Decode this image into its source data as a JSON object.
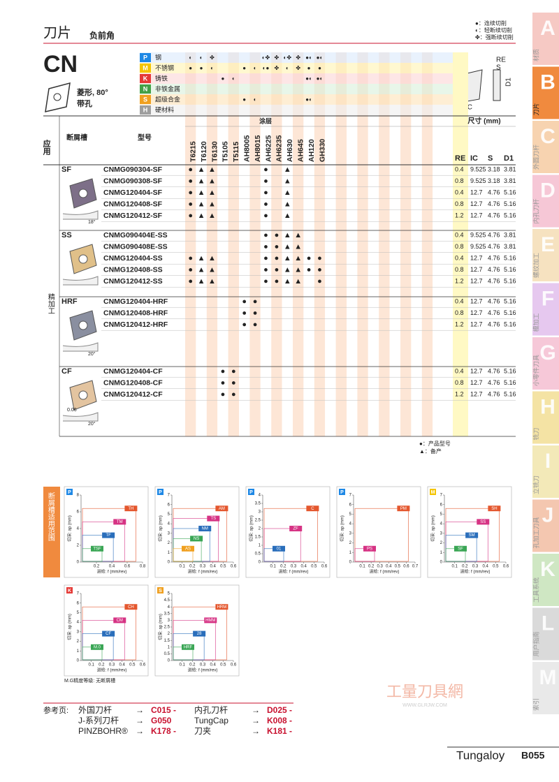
{
  "header": {
    "title": "刀片",
    "subtitle": "负前角",
    "legend": [
      "●：连续切削",
      "◐：轻断续切削",
      "✤：强断续切削"
    ]
  },
  "insert": {
    "code": "CN",
    "shape": "菱形, 80°",
    "hole": "带孔",
    "dims": [
      "RE",
      "S",
      "IC",
      "D1"
    ]
  },
  "materials": [
    {
      "code": "P",
      "name": "钢",
      "marks": [
        "◐",
        "◐",
        "✤",
        null,
        null,
        null,
        null,
        "◐✤",
        "✤",
        "◐✤",
        "✤",
        "●◐",
        "●◐"
      ]
    },
    {
      "code": "M",
      "name": "不锈钢",
      "marks": [
        "●",
        "●",
        "◐",
        null,
        null,
        "●",
        "◐",
        "◐●",
        "✤",
        "◐",
        "✤",
        "●",
        "●"
      ]
    },
    {
      "code": "K",
      "name": "铸铁",
      "marks": [
        null,
        null,
        null,
        "●",
        "◐",
        null,
        null,
        null,
        null,
        null,
        null,
        "●◐",
        "●◐"
      ]
    },
    {
      "code": "N",
      "name": "非铁金属",
      "marks": [
        null,
        null,
        null,
        null,
        null,
        null,
        null,
        null,
        null,
        null,
        null,
        null,
        null
      ]
    },
    {
      "code": "S",
      "name": "超级合金",
      "marks": [
        null,
        null,
        null,
        null,
        null,
        "●",
        "◐",
        null,
        null,
        null,
        null,
        "●◐",
        null
      ]
    },
    {
      "code": "H",
      "name": "硬材料",
      "marks": [
        null,
        null,
        null,
        null,
        null,
        null,
        null,
        null,
        null,
        null,
        null,
        null,
        null
      ]
    }
  ],
  "table": {
    "col_application": "应用",
    "col_chipbreaker": "断屑槽",
    "col_model": "型号",
    "col_coating": "涂层",
    "col_dims": "尺寸 (mm)",
    "dim_heads": [
      "RE",
      "IC",
      "S",
      "D1"
    ],
    "application": "精加工",
    "grades": [
      "T6215",
      "T6120",
      "T6130",
      "T5105",
      "T5115",
      "AH8005",
      "AH8015",
      "AH6225",
      "AH6235",
      "AH630",
      "AH645",
      "AH120",
      "GH330"
    ],
    "groups": [
      {
        "name": "SF",
        "angle": "18°",
        "rows": [
          {
            "model": "CNMG090304-SF",
            "marks": [
              "●",
              "▲",
              "▲",
              null,
              null,
              null,
              null,
              "●",
              null,
              "▲",
              null,
              null,
              null
            ],
            "dims": [
              "0.4",
              "9.525",
              "3.18",
              "3.81"
            ]
          },
          {
            "model": "CNMG090308-SF",
            "marks": [
              "●",
              "▲",
              "▲",
              null,
              null,
              null,
              null,
              "●",
              null,
              "▲",
              null,
              null,
              null
            ],
            "dims": [
              "0.8",
              "9.525",
              "3.18",
              "3.81"
            ]
          },
          {
            "model": "CNMG120404-SF",
            "marks": [
              "●",
              "▲",
              "▲",
              null,
              null,
              null,
              null,
              "●",
              null,
              "▲",
              null,
              null,
              null
            ],
            "dims": [
              "0.4",
              "12.7",
              "4.76",
              "5.16"
            ]
          },
          {
            "model": "CNMG120408-SF",
            "marks": [
              "●",
              "▲",
              "▲",
              null,
              null,
              null,
              null,
              "●",
              null,
              "▲",
              null,
              null,
              null
            ],
            "dims": [
              "0.8",
              "12.7",
              "4.76",
              "5.16"
            ]
          },
          {
            "model": "CNMG120412-SF",
            "marks": [
              "●",
              "▲",
              "▲",
              null,
              null,
              null,
              null,
              "●",
              null,
              "▲",
              null,
              null,
              null
            ],
            "dims": [
              "1.2",
              "12.7",
              "4.76",
              "5.16"
            ]
          }
        ]
      },
      {
        "name": "SS",
        "rows": [
          {
            "model": "CNMG090404E-SS",
            "marks": [
              null,
              null,
              null,
              null,
              null,
              null,
              null,
              "●",
              "●",
              "▲",
              "▲",
              null,
              null
            ],
            "dims": [
              "0.4",
              "9.525",
              "4.76",
              "3.81"
            ]
          },
          {
            "model": "CNMG090408E-SS",
            "marks": [
              null,
              null,
              null,
              null,
              null,
              null,
              null,
              "●",
              "●",
              "▲",
              "▲",
              null,
              null
            ],
            "dims": [
              "0.8",
              "9.525",
              "4.76",
              "3.81"
            ]
          },
          {
            "model": "CNMG120404-SS",
            "marks": [
              "●",
              "▲",
              "▲",
              null,
              null,
              null,
              null,
              "●",
              "●",
              "▲",
              "▲",
              "●",
              "●"
            ],
            "dims": [
              "0.4",
              "12.7",
              "4.76",
              "5.16"
            ]
          },
          {
            "model": "CNMG120408-SS",
            "marks": [
              "●",
              "▲",
              "▲",
              null,
              null,
              null,
              null,
              "●",
              "●",
              "▲",
              "▲",
              "●",
              "●"
            ],
            "dims": [
              "0.8",
              "12.7",
              "4.76",
              "5.16"
            ]
          },
          {
            "model": "CNMG120412-SS",
            "marks": [
              "●",
              "▲",
              "▲",
              null,
              null,
              null,
              null,
              "●",
              "●",
              "▲",
              "▲",
              null,
              "●"
            ],
            "dims": [
              "1.2",
              "12.7",
              "4.76",
              "5.16"
            ]
          }
        ]
      },
      {
        "name": "HRF",
        "angle": "20°",
        "rows": [
          {
            "model": "CNMG120404-HRF",
            "marks": [
              null,
              null,
              null,
              null,
              null,
              "●",
              "●",
              null,
              null,
              null,
              null,
              null,
              null
            ],
            "dims": [
              "0.4",
              "12.7",
              "4.76",
              "5.16"
            ]
          },
          {
            "model": "CNMG120408-HRF",
            "marks": [
              null,
              null,
              null,
              null,
              null,
              "●",
              "●",
              null,
              null,
              null,
              null,
              null,
              null
            ],
            "dims": [
              "0.8",
              "12.7",
              "4.76",
              "5.16"
            ]
          },
          {
            "model": "CNMG120412-HRF",
            "marks": [
              null,
              null,
              null,
              null,
              null,
              "●",
              "●",
              null,
              null,
              null,
              null,
              null,
              null
            ],
            "dims": [
              "1.2",
              "12.7",
              "4.76",
              "5.16"
            ]
          }
        ]
      },
      {
        "name": "CF",
        "angle": "20°",
        "land": "0.06",
        "rows": [
          {
            "model": "CNMG120404-CF",
            "marks": [
              null,
              null,
              null,
              "●",
              "●",
              null,
              null,
              null,
              null,
              null,
              null,
              null,
              null
            ],
            "dims": [
              "0.4",
              "12.7",
              "4.76",
              "5.16"
            ]
          },
          {
            "model": "CNMG120408-CF",
            "marks": [
              null,
              null,
              null,
              "●",
              "●",
              null,
              null,
              null,
              null,
              null,
              null,
              null,
              null
            ],
            "dims": [
              "0.8",
              "12.7",
              "4.76",
              "5.16"
            ]
          },
          {
            "model": "CNMG120412-CF",
            "marks": [
              null,
              null,
              null,
              "●",
              "●",
              null,
              null,
              null,
              null,
              null,
              null,
              null,
              null
            ],
            "dims": [
              "1.2",
              "12.7",
              "4.76",
              "5.16"
            ]
          }
        ]
      }
    ],
    "notes": [
      "●：产品型号",
      "▲：备产"
    ]
  },
  "ranges": {
    "title": "断屑槽适用范围",
    "xlabel": "进给: f (mm/rev)",
    "ylabel": "切深: ap (mm)",
    "note": "M.G精度等级: 无断屑槽",
    "charts": [
      {
        "material": "P",
        "xticks": [
          0.2,
          0.4,
          0.6,
          0.8
        ],
        "yticks": [
          0,
          2,
          4,
          6,
          8
        ],
        "regions": [
          "TH",
          "TM",
          "TF",
          "TSF"
        ]
      },
      {
        "material": "P",
        "xticks": [
          0.1,
          0.2,
          0.3,
          0.4,
          0.5,
          0.6
        ],
        "yticks": [
          0,
          1,
          2,
          3,
          4,
          5,
          6,
          7
        ],
        "regions": [
          "AM",
          "TS",
          "NM",
          "NS",
          "AS"
        ]
      },
      {
        "material": "P",
        "xticks": [
          0.1,
          0.2,
          0.3,
          0.4,
          0.5,
          0.6
        ],
        "yticks": [
          0,
          0.5,
          1,
          1.5,
          2,
          2.5,
          3,
          3.5,
          4
        ],
        "regions": [
          "C",
          "ZF",
          "01"
        ]
      },
      {
        "material": "P",
        "xticks": [
          0.1,
          0.2,
          0.3,
          0.4,
          0.5,
          0.6,
          0.7
        ],
        "yticks": [
          0,
          1,
          2,
          3,
          4,
          5,
          6,
          7
        ],
        "regions": [
          "PM",
          "PS"
        ]
      },
      {
        "material": "M",
        "xticks": [
          0.1,
          0.2,
          0.3,
          0.4,
          0.5,
          0.6
        ],
        "yticks": [
          0,
          1,
          2,
          3,
          4,
          5,
          6,
          7
        ],
        "regions": [
          "SH",
          "SS",
          "SM",
          "SF"
        ]
      },
      {
        "material": "K",
        "xticks": [
          0.1,
          0.2,
          0.3,
          0.4,
          0.5,
          0.6
        ],
        "yticks": [
          0,
          1,
          2,
          3,
          4,
          5,
          6,
          7
        ],
        "regions": [
          "CH",
          "CM",
          "CF",
          "M.0"
        ]
      },
      {
        "material": "S",
        "xticks": [
          0.1,
          0.2,
          0.3,
          0.4,
          0.5,
          0.6
        ],
        "yticks": [
          0,
          0.5,
          1,
          1.5,
          2,
          2.5,
          3,
          3.5,
          4,
          4.5,
          5
        ],
        "regions": [
          "HRM",
          "HMM",
          "28",
          "HRF"
        ]
      }
    ]
  },
  "references": {
    "label": "参考页:",
    "items": [
      [
        "外国刀杆",
        "C015 -"
      ],
      [
        "内孔刀杆",
        "D025 -"
      ],
      [
        "J-系列刀杆",
        "G050"
      ],
      [
        "TungCap",
        "K008 -"
      ],
      [
        "PINZBOHR®",
        "K178 -"
      ],
      [
        "刀夹",
        "K181 -"
      ]
    ]
  },
  "tabs": [
    [
      "A",
      "材质"
    ],
    [
      "B",
      "刀片"
    ],
    [
      "C",
      "外圆刀杆"
    ],
    [
      "D",
      "内孔刀杆"
    ],
    [
      "E",
      "螺纹加工"
    ],
    [
      "F",
      "槽加工"
    ],
    [
      "G",
      "小零件刀具"
    ],
    [
      "H",
      "铣刀"
    ],
    [
      "I",
      "立铣刀"
    ],
    [
      "J",
      "孔加工刀具"
    ],
    [
      "K",
      "工具系统"
    ],
    [
      "L",
      "用户指南"
    ],
    [
      "M",
      "索引"
    ]
  ],
  "watermark": {
    "name": "工量刀具網",
    "url": "WWW.GLRJW.COM"
  },
  "footer": {
    "brand": "Tungaloy",
    "page": "B055"
  }
}
